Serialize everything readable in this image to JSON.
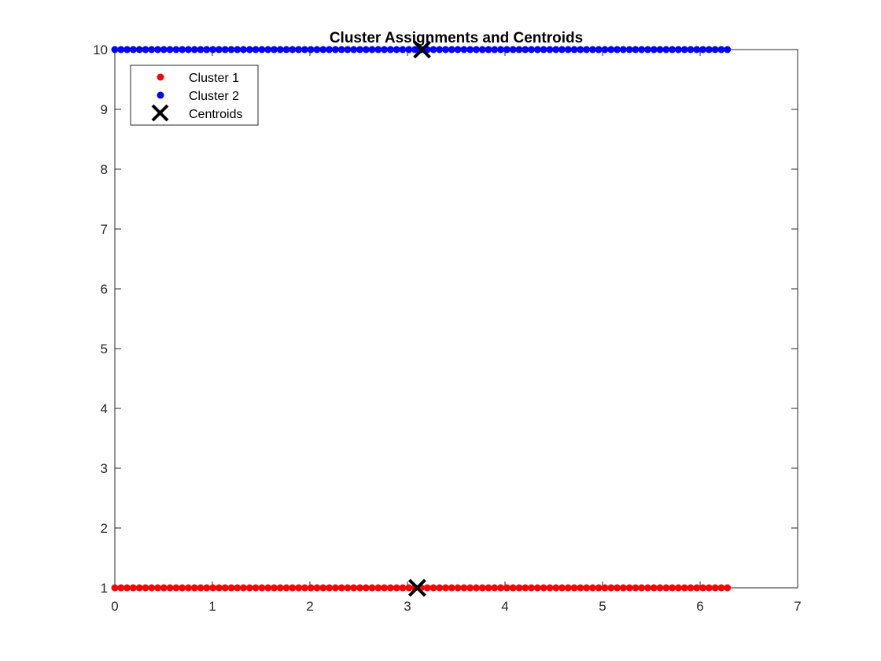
{
  "colors": {
    "cluster1": "#ff0000",
    "cluster2": "#0000ff",
    "centroid": "#000000",
    "axis": "#262626",
    "background": "#ffffff"
  },
  "chart_data": {
    "type": "scatter",
    "title": "Cluster Assignments and Centroids",
    "xlabel": "",
    "ylabel": "",
    "xlim": [
      0,
      7
    ],
    "ylim": [
      1,
      10
    ],
    "xticks": [
      0,
      1,
      2,
      3,
      4,
      5,
      6,
      7
    ],
    "yticks": [
      1,
      2,
      3,
      4,
      5,
      6,
      7,
      8,
      9,
      10
    ],
    "grid": false,
    "legend_position": "top-left",
    "series": [
      {
        "name": "Cluster 1",
        "marker": "filled-circle",
        "color": "#ff0000",
        "y": 1,
        "x_start": 0,
        "x_end": 6.283,
        "x_step": 0.0628
      },
      {
        "name": "Cluster 2",
        "marker": "filled-circle",
        "color": "#0000ff",
        "y": 10,
        "x_start": 0,
        "x_end": 6.283,
        "x_step": 0.0628
      },
      {
        "name": "Centroids",
        "marker": "x",
        "color": "#000000",
        "points": [
          {
            "x": 3.1,
            "y": 1
          },
          {
            "x": 3.15,
            "y": 10
          }
        ]
      }
    ]
  }
}
